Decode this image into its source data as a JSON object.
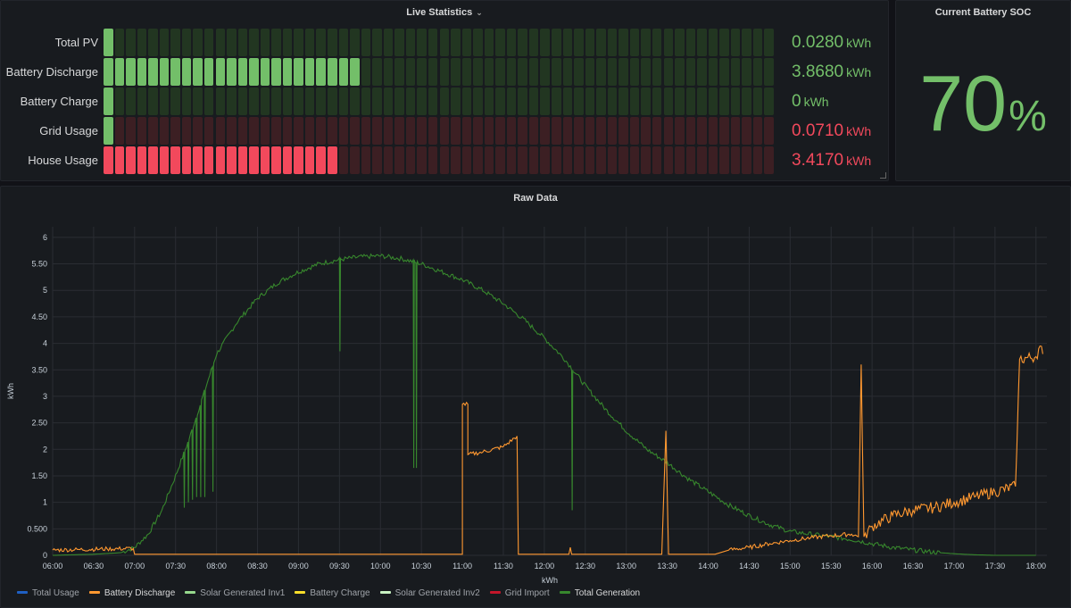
{
  "live_statistics": {
    "title": "Live Statistics",
    "rows": [
      {
        "label": "Total PV",
        "value": "0.0280",
        "unit": "kWh",
        "fill_fraction": 0.0,
        "lit_cells": 1,
        "color": "green"
      },
      {
        "label": "Battery Discharge",
        "value": "3.8680",
        "unit": "kWh",
        "fill_fraction": 0.387,
        "lit_cells": 23,
        "color": "green"
      },
      {
        "label": "Battery Charge",
        "value": "0",
        "unit": "kWh",
        "fill_fraction": 0.0,
        "lit_cells": 1,
        "color": "green"
      },
      {
        "label": "Grid Usage",
        "value": "0.0710",
        "unit": "kWh",
        "fill_fraction": 0.0,
        "lit_cells": 1,
        "color": "green_on_red"
      },
      {
        "label": "House Usage",
        "value": "3.4170",
        "unit": "kWh",
        "fill_fraction": 0.347,
        "lit_cells": 21,
        "color": "red"
      }
    ],
    "total_cells": 60
  },
  "battery_soc": {
    "title": "Current Battery SOC",
    "value": "70",
    "unit": "%"
  },
  "raw_data": {
    "title": "Raw Data",
    "legend": [
      {
        "name": "Total Usage",
        "color": "#1f60c4",
        "bold": false
      },
      {
        "name": "Battery Discharge",
        "color": "#ff9830",
        "bold": true
      },
      {
        "name": "Solar Generated Inv1",
        "color": "#96d98d",
        "bold": false
      },
      {
        "name": "Battery Charge",
        "color": "#fade2a",
        "bold": false
      },
      {
        "name": "Solar Generated Inv2",
        "color": "#c8f2c2",
        "bold": false
      },
      {
        "name": "Grid Import",
        "color": "#c4162a",
        "bold": false
      },
      {
        "name": "Total Generation",
        "color": "#37872d",
        "bold": true
      }
    ]
  },
  "colors": {
    "green": "#73bf69",
    "red": "#f2495c",
    "green_unlit": "#223621",
    "red_unlit": "#3c1f23",
    "orange": "#ff9830",
    "dark_green": "#37872d"
  },
  "chart_data": {
    "type": "line",
    "title": "",
    "xlabel": "kWh",
    "ylabel": "kWh",
    "ylim": [
      0,
      6.2
    ],
    "yticks": [
      "0",
      "0.500",
      "1",
      "1.50",
      "2",
      "2.50",
      "3",
      "3.50",
      "4",
      "4.50",
      "5",
      "5.50",
      "6"
    ],
    "xticks": [
      "06:00",
      "06:30",
      "07:00",
      "07:30",
      "08:00",
      "08:30",
      "09:00",
      "09:30",
      "10:00",
      "10:30",
      "11:00",
      "11:30",
      "12:00",
      "12:30",
      "13:00",
      "13:30",
      "14:00",
      "14:30",
      "15:00",
      "15:30",
      "16:00",
      "16:30",
      "17:00",
      "17:30",
      "18:00"
    ],
    "grid": true,
    "legend_position": "bottom-left",
    "series": [
      {
        "name": "Total Generation",
        "color": "#37872d",
        "points": [
          [
            "06:00",
            0.0
          ],
          [
            "06:30",
            0.02
          ],
          [
            "06:50",
            0.05
          ],
          [
            "07:00",
            0.15
          ],
          [
            "07:10",
            0.4
          ],
          [
            "07:20",
            0.85
          ],
          [
            "07:30",
            1.5
          ],
          [
            "07:40",
            2.2
          ],
          [
            "07:50",
            3.0
          ],
          [
            "08:00",
            3.8
          ],
          [
            "08:15",
            4.4
          ],
          [
            "08:30",
            4.85
          ],
          [
            "08:45",
            5.15
          ],
          [
            "09:00",
            5.35
          ],
          [
            "09:15",
            5.5
          ],
          [
            "09:30",
            5.58
          ],
          [
            "09:45",
            5.63
          ],
          [
            "10:00",
            5.65
          ],
          [
            "10:15",
            5.6
          ],
          [
            "10:30",
            5.5
          ],
          [
            "10:45",
            5.35
          ],
          [
            "11:00",
            5.2
          ],
          [
            "11:15",
            5.0
          ],
          [
            "11:30",
            4.75
          ],
          [
            "11:45",
            4.45
          ],
          [
            "12:00",
            4.1
          ],
          [
            "12:15",
            3.7
          ],
          [
            "12:30",
            3.2
          ],
          [
            "12:45",
            2.75
          ],
          [
            "13:00",
            2.35
          ],
          [
            "13:15",
            2.0
          ],
          [
            "13:30",
            1.75
          ],
          [
            "13:45",
            1.45
          ],
          [
            "14:00",
            1.2
          ],
          [
            "14:15",
            0.95
          ],
          [
            "14:30",
            0.75
          ],
          [
            "14:45",
            0.58
          ],
          [
            "15:00",
            0.45
          ],
          [
            "15:15",
            0.4
          ],
          [
            "15:30",
            0.35
          ],
          [
            "15:45",
            0.3
          ],
          [
            "16:00",
            0.22
          ],
          [
            "16:15",
            0.15
          ],
          [
            "16:30",
            0.1
          ],
          [
            "16:45",
            0.06
          ],
          [
            "17:00",
            0.03
          ],
          [
            "17:15",
            0.01
          ],
          [
            "17:30",
            0.0
          ],
          [
            "18:00",
            0.0
          ]
        ],
        "dips": [
          [
            "07:36",
            0.9
          ],
          [
            "07:39",
            1.0
          ],
          [
            "07:42",
            1.05
          ],
          [
            "07:45",
            1.1
          ],
          [
            "07:48",
            1.1
          ],
          [
            "07:51",
            1.1
          ],
          [
            "07:57",
            1.2
          ],
          [
            "09:30",
            3.85
          ],
          [
            "10:24",
            1.65
          ],
          [
            "10:26",
            1.65
          ],
          [
            "12:20",
            0.85
          ]
        ]
      },
      {
        "name": "Battery Discharge",
        "color": "#ff9830",
        "points": [
          [
            "06:00",
            0.1
          ],
          [
            "06:20",
            0.11
          ],
          [
            "06:40",
            0.12
          ],
          [
            "06:59",
            0.13
          ],
          [
            "07:00",
            0.02
          ],
          [
            "11:00",
            0.02
          ],
          [
            "11:00",
            2.85
          ],
          [
            "11:04",
            2.85
          ],
          [
            "11:04",
            1.9
          ],
          [
            "11:15",
            1.95
          ],
          [
            "11:30",
            2.05
          ],
          [
            "11:40",
            2.25
          ],
          [
            "11:41",
            0.02
          ],
          [
            "12:18",
            0.02
          ],
          [
            "12:19",
            0.15
          ],
          [
            "12:20",
            0.02
          ],
          [
            "13:26",
            0.02
          ],
          [
            "13:29",
            2.35
          ],
          [
            "13:31",
            0.02
          ],
          [
            "14:05",
            0.02
          ],
          [
            "14:15",
            0.1
          ],
          [
            "14:30",
            0.15
          ],
          [
            "14:45",
            0.22
          ],
          [
            "15:00",
            0.28
          ],
          [
            "15:15",
            0.33
          ],
          [
            "15:30",
            0.37
          ],
          [
            "15:45",
            0.4
          ],
          [
            "15:50",
            0.35
          ],
          [
            "15:52",
            3.6
          ],
          [
            "15:54",
            0.35
          ],
          [
            "16:00",
            0.55
          ],
          [
            "16:15",
            0.75
          ],
          [
            "16:30",
            0.85
          ],
          [
            "16:45",
            0.9
          ],
          [
            "17:00",
            1.0
          ],
          [
            "17:15",
            1.1
          ],
          [
            "17:30",
            1.2
          ],
          [
            "17:45",
            1.3
          ],
          [
            "17:48",
            3.7
          ],
          [
            "18:00",
            3.75
          ],
          [
            "18:03",
            3.95
          ],
          [
            "18:05",
            3.8
          ]
        ]
      }
    ]
  }
}
